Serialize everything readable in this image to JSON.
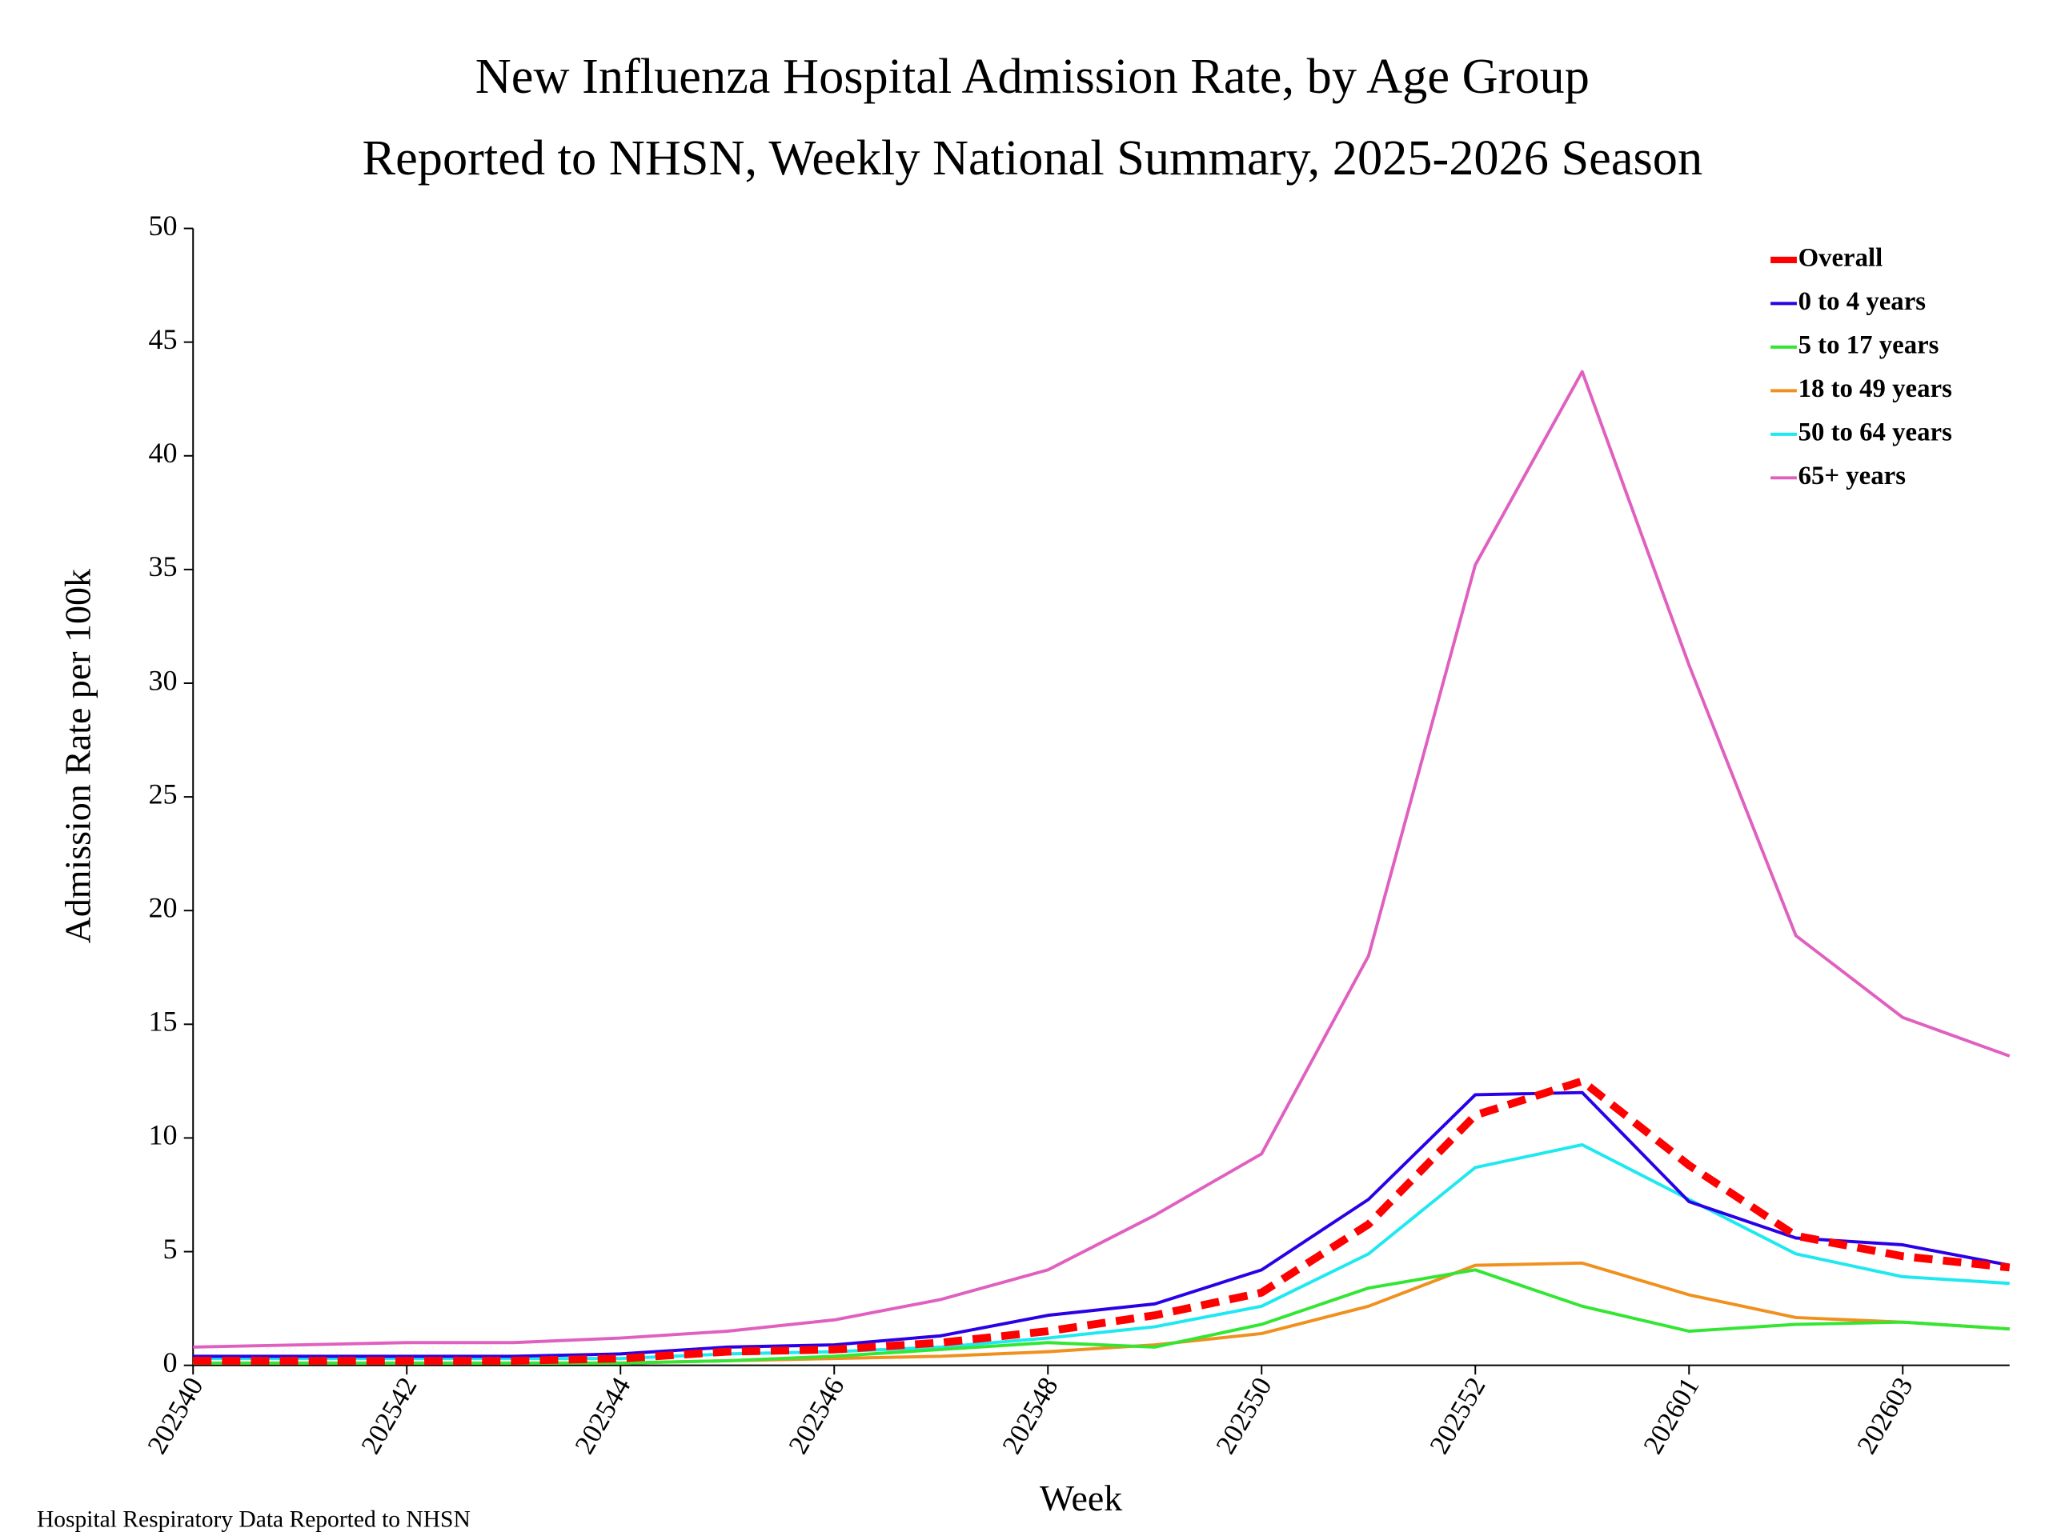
{
  "chart_data": {
    "type": "line",
    "title": "New Influenza Hospital Admission Rate, by Age Group",
    "subtitle": "Reported to NHSN, Weekly National Summary, 2025-2026 Season",
    "x_label": "Week",
    "y_label": "Admission Rate per 100k",
    "source": "Hospital Respiratory Data Reported to NHSN",
    "categories": [
      "202540",
      null,
      "202542",
      null,
      "202544",
      null,
      "202546",
      null,
      "202548",
      null,
      "202550",
      null,
      "202552",
      null,
      "202601",
      null,
      "202603",
      null
    ],
    "ylim": [
      0,
      50
    ],
    "yticks": [
      0,
      5,
      10,
      15,
      20,
      25,
      30,
      35,
      40,
      45,
      50
    ],
    "grid": false,
    "legend": "upper right",
    "series": [
      {
        "name": "Overall",
        "color": "#ff0000",
        "dashed": true,
        "values": [
          0.2,
          0.2,
          0.2,
          0.2,
          0.3,
          0.6,
          0.7,
          1.0,
          1.5,
          2.2,
          3.2,
          6.2,
          11.0,
          12.5,
          8.8,
          5.7,
          4.8,
          4.3
        ]
      },
      {
        "name": "0 to 4 years",
        "color": "#2a00e6",
        "values": [
          0.4,
          0.4,
          0.4,
          0.4,
          0.5,
          0.8,
          0.9,
          1.3,
          2.2,
          2.7,
          4.2,
          7.3,
          11.9,
          12.0,
          7.2,
          5.6,
          5.3,
          4.4
        ]
      },
      {
        "name": "5 to 17 years",
        "color": "#33e633",
        "values": [
          0.1,
          0.1,
          0.1,
          0.1,
          0.1,
          0.2,
          0.4,
          0.7,
          1.0,
          0.8,
          1.8,
          3.4,
          4.2,
          2.6,
          1.5,
          1.8,
          1.9,
          1.6
        ]
      },
      {
        "name": "18 to 49 years",
        "color": "#f0901e",
        "values": [
          0.1,
          0.1,
          0.1,
          0.1,
          0.1,
          0.2,
          0.3,
          0.4,
          0.6,
          0.9,
          1.4,
          2.6,
          4.4,
          4.5,
          3.1,
          2.1,
          1.9,
          1.6
        ]
      },
      {
        "name": "50 to 64 years",
        "color": "#1ee8f0",
        "values": [
          0.3,
          0.3,
          0.3,
          0.3,
          0.3,
          0.5,
          0.6,
          0.8,
          1.2,
          1.7,
          2.6,
          4.9,
          8.7,
          9.7,
          7.3,
          4.9,
          3.9,
          3.6
        ]
      },
      {
        "name": "65+ years",
        "color": "#e060c0",
        "values": [
          0.8,
          0.9,
          1.0,
          1.0,
          1.2,
          1.5,
          2.0,
          2.9,
          4.2,
          6.6,
          9.3,
          18.0,
          35.2,
          43.7,
          30.8,
          18.9,
          15.3,
          13.6
        ]
      }
    ]
  }
}
